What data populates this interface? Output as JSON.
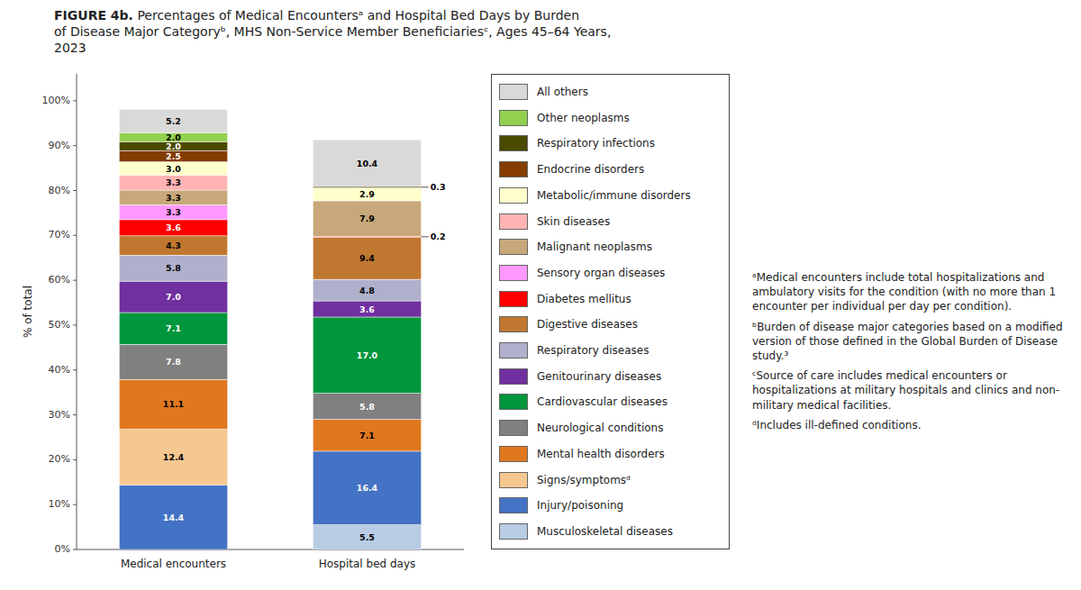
{
  "chart_data": {
    "type": "bar",
    "stacked": true,
    "data_labels": true,
    "grid": false,
    "legend": "right",
    "title": "FIGURE 4b.",
    "subtitle": "Percentages of Medical Encountersᵃ and Hospital Bed Days by Burden\nof Disease Major Categoryᵇ, MHS Non-Service Member Beneficiariesᶜ, Ages 45–64 Years,\n2023",
    "y_label": "% of total",
    "categories": [
      "Medical encounters",
      "Hospital bed days"
    ],
    "ylim": [
      0,
      106
    ],
    "yticks": [
      {
        "value": 0,
        "label": "0%"
      },
      {
        "value": 10,
        "label": "10%"
      },
      {
        "value": 20,
        "label": "20%"
      },
      {
        "value": 30,
        "label": "30%"
      },
      {
        "value": 40,
        "label": "40%"
      },
      {
        "value": 50,
        "label": "50%"
      },
      {
        "value": 60,
        "label": "60%"
      },
      {
        "value": 70,
        "label": "70%"
      },
      {
        "value": 80,
        "label": "80%"
      },
      {
        "value": 90,
        "label": "90%"
      },
      {
        "value": 100,
        "label": "100%"
      }
    ],
    "series": [
      {
        "name": "All others",
        "color": "#d9d9d9",
        "values": [
          5.2,
          10.4
        ],
        "value_labels": [
          "5.2",
          "10.4"
        ]
      },
      {
        "name": "Other neoplasms",
        "color": "#92d050",
        "values": [
          2.0,
          0.0
        ],
        "value_labels": [
          "2.0",
          null
        ]
      },
      {
        "name": "Respiratory infections",
        "color": "#4a4a00",
        "values": [
          2.0,
          0.3
        ],
        "value_labels": [
          "2.0",
          "0.3"
        ]
      },
      {
        "name": "Endocrine disorders",
        "color": "#843c00",
        "values": [
          2.5,
          0.0
        ],
        "value_labels": [
          "2.5",
          null
        ]
      },
      {
        "name": "Metabolic/immune disorders",
        "color": "#ffffcc",
        "values": [
          3.0,
          2.9
        ],
        "value_labels": [
          "3.0",
          "2.9"
        ]
      },
      {
        "name": "Skin diseases",
        "color": "#ffb3b3",
        "values": [
          3.3,
          0.0
        ],
        "value_labels": [
          "3.3",
          null
        ]
      },
      {
        "name": "Malignant neoplasms",
        "color": "#c8a87a",
        "values": [
          3.3,
          7.9
        ],
        "value_labels": [
          "3.3",
          "7.9"
        ]
      },
      {
        "name": "Sensory organ diseases",
        "color": "#ff99ff",
        "values": [
          3.3,
          0.0
        ],
        "value_labels": [
          "3.3",
          null
        ]
      },
      {
        "name": "Diabetes mellitus",
        "color": "#ff0000",
        "values": [
          3.6,
          0.2
        ],
        "value_labels": [
          "3.6",
          "0.2"
        ]
      },
      {
        "name": "Digestive diseases",
        "color": "#c07830",
        "values": [
          4.3,
          9.4
        ],
        "value_labels": [
          "4.3",
          "9.4"
        ]
      },
      {
        "name": "Respiratory diseases",
        "color": "#b0b0cc",
        "values": [
          5.8,
          4.8
        ],
        "value_labels": [
          "5.8",
          "4.8"
        ]
      },
      {
        "name": "Genitourinary diseases",
        "color": "#7030a0",
        "values": [
          7.0,
          3.6
        ],
        "value_labels": [
          "7.0",
          "3.6"
        ]
      },
      {
        "name": "Cardiovascular diseases",
        "color": "#00963c",
        "values": [
          7.1,
          17.0
        ],
        "value_labels": [
          "7.1",
          "17.0"
        ]
      },
      {
        "name": "Neurological conditions",
        "color": "#808080",
        "values": [
          7.8,
          5.8
        ],
        "value_labels": [
          "7.8",
          "5.8"
        ]
      },
      {
        "name": "Mental health disorders",
        "color": "#e07820",
        "values": [
          11.1,
          7.1
        ],
        "value_labels": [
          "11.1",
          "7.1"
        ]
      },
      {
        "name": "Signs/symptomsᵈ",
        "color": "#f5c890",
        "values": [
          12.4,
          0.0
        ],
        "value_labels": [
          "12.4",
          null
        ]
      },
      {
        "name": "Injury/poisoning",
        "color": "#4472c4",
        "values": [
          14.4,
          16.4
        ],
        "value_labels": [
          "14.4",
          "16.4"
        ]
      },
      {
        "name": "Musculoskeletal diseases",
        "color": "#b8cce4",
        "values": [
          0.0,
          5.5
        ],
        "value_labels": [
          null,
          "5.5"
        ]
      }
    ],
    "annotations": [
      "ᵃMedical encounters include total hospitalizations and ambulatory visits for the condition (with no more than 1 encounter per individual per day per condition).",
      "ᵇBurden of disease major categories based on a modified version of those defined in the Global Burden of Disease study.³",
      "ᶜSource of care includes medical encounters or hospitalizations at military hospitals and clinics and non-military medical facilities.",
      "ᵈIncludes ill-defined conditions."
    ]
  }
}
